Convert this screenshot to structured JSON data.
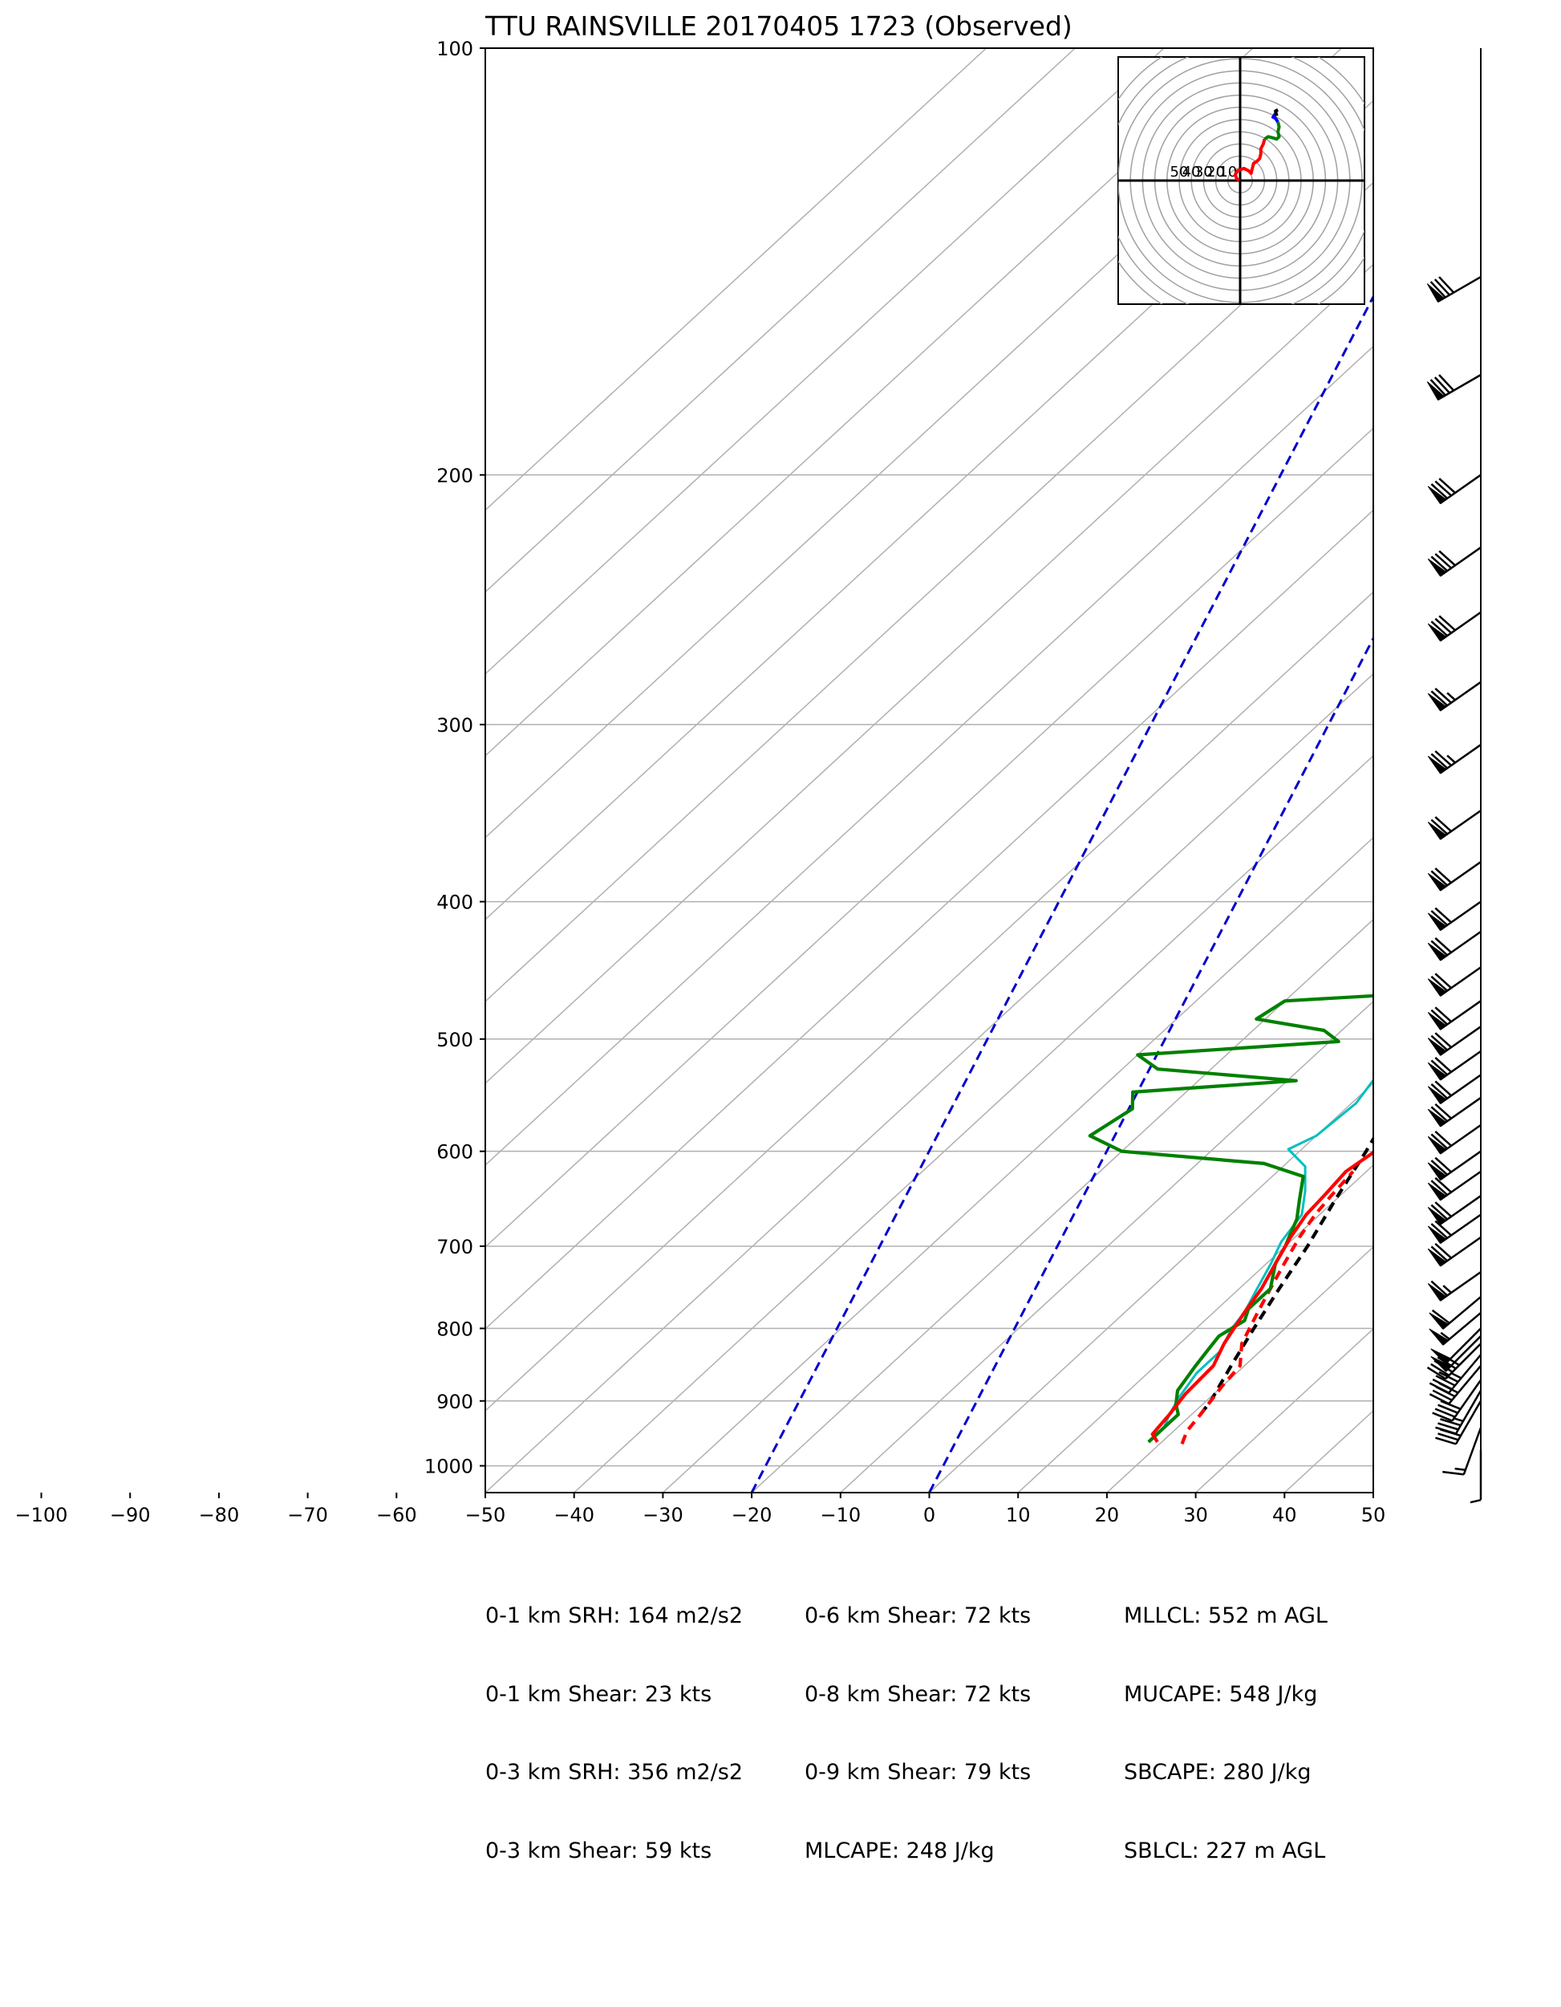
{
  "chart_data": {
    "type": "line",
    "diagram": "skew-T log-P",
    "title": "TTU RAINSVILLE 20170405 1723   (Observed)",
    "xlabel": "",
    "ylabel": "",
    "x_ticks": [
      "−100",
      "−90",
      "−80",
      "−70",
      "−60",
      "−50",
      "−40",
      "−30",
      "−20",
      "−10",
      "0",
      "10",
      "20",
      "30",
      "40",
      "50"
    ],
    "x_tick_values": [
      -100,
      -90,
      -80,
      -70,
      -60,
      -50,
      -40,
      -30,
      -20,
      -10,
      0,
      10,
      20,
      30,
      40,
      50
    ],
    "y_ticks": [
      "100",
      "200",
      "300",
      "400",
      "500",
      "600",
      "700",
      "800",
      "900",
      "1000"
    ],
    "y_tick_values": [
      100,
      200,
      300,
      400,
      500,
      600,
      700,
      800,
      900,
      1000
    ],
    "xlim": [
      -50,
      50
    ],
    "ylim": [
      1050,
      100
    ],
    "y_scale": "log",
    "grid": true,
    "colors": {
      "temperature": "#ff0000",
      "dewpoint": "#008000",
      "wetbulb": "#00bfbf",
      "parcel": "#000000",
      "mixing_ratio": "#0000cc",
      "grid": "#b0b0b0"
    },
    "series": [
      {
        "name": "",
        "role": "temperature",
        "color": "#ff0000",
        "style": "solid",
        "points": [
          [
            19.5,
            962
          ],
          [
            18.0,
            950
          ],
          [
            17.5,
            920
          ],
          [
            16.8,
            890
          ],
          [
            16.5,
            850
          ],
          [
            15.0,
            820
          ],
          [
            13.5,
            780
          ],
          [
            12.5,
            750
          ],
          [
            11.0,
            720
          ],
          [
            9.5,
            690
          ],
          [
            8.5,
            665
          ],
          [
            8.2,
            645
          ],
          [
            7.7,
            620
          ],
          [
            8.5,
            600
          ],
          [
            9.5,
            580
          ],
          [
            9.0,
            555
          ],
          [
            7.0,
            530
          ],
          [
            5.5,
            500
          ],
          [
            4.5,
            480
          ],
          [
            3.0,
            460
          ],
          [
            0.0,
            430
          ],
          [
            -3.5,
            400
          ],
          [
            -4.5,
            380
          ],
          [
            -6.5,
            350
          ],
          [
            -8.0,
            330
          ],
          [
            -10.5,
            300
          ],
          [
            -11.0,
            285
          ],
          [
            -13.0,
            265
          ],
          [
            -14.0,
            255
          ],
          [
            -18.0,
            235
          ],
          [
            -21.0,
            215
          ],
          [
            -24.0,
            200
          ],
          [
            -27.5,
            190
          ],
          [
            -32.0,
            183
          ],
          [
            -34.0,
            178
          ],
          [
            -34.5,
            172
          ],
          [
            -37.5,
            165
          ],
          [
            -39.0,
            160
          ],
          [
            -40.0,
            155
          ],
          [
            -42.0,
            147
          ],
          [
            -45.5,
            143
          ]
        ]
      },
      {
        "name": "",
        "role": "temperature-virtual",
        "color": "#ff0000",
        "style": "dashed",
        "points": [
          [
            22.5,
            965
          ],
          [
            21.5,
            945
          ],
          [
            21.0,
            920
          ],
          [
            20.0,
            880
          ],
          [
            19.5,
            850
          ],
          [
            17.0,
            820
          ],
          [
            15.0,
            780
          ],
          [
            13.5,
            750
          ],
          [
            12.0,
            720
          ],
          [
            10.5,
            690
          ],
          [
            9.5,
            665
          ],
          [
            9.0,
            645
          ],
          [
            8.5,
            620
          ]
        ]
      },
      {
        "name": "",
        "role": "dewpoint",
        "color": "#008000",
        "style": "solid",
        "points": [
          [
            18.5,
            962
          ],
          [
            18.5,
            940
          ],
          [
            18.5,
            920
          ],
          [
            17.0,
            905
          ],
          [
            15.5,
            885
          ],
          [
            14.5,
            850
          ],
          [
            14.0,
            830
          ],
          [
            13.5,
            810
          ],
          [
            14.5,
            790
          ],
          [
            13.5,
            775
          ],
          [
            13.5,
            750
          ],
          [
            11.0,
            720
          ],
          [
            10.0,
            700
          ],
          [
            9.0,
            685
          ],
          [
            8.0,
            670
          ],
          [
            6.0,
            650
          ],
          [
            3.5,
            625
          ],
          [
            -2.5,
            612
          ],
          [
            -20.0,
            600
          ],
          [
            -25.5,
            585
          ],
          [
            -24.0,
            560
          ],
          [
            -26.0,
            545
          ],
          [
            -9.0,
            535
          ],
          [
            -26.0,
            525
          ],
          [
            -30.0,
            513
          ],
          [
            -9.0,
            502
          ],
          [
            -12.0,
            493
          ],
          [
            -21.0,
            484
          ],
          [
            -20.0,
            470
          ],
          [
            -8.0,
            465
          ],
          [
            -3.5,
            440
          ],
          [
            -3.5,
            420
          ],
          [
            -8.0,
            390
          ],
          [
            -10.5,
            360
          ],
          [
            -16.0,
            320
          ],
          [
            -16.5,
            305
          ],
          [
            -14.5,
            295
          ],
          [
            -30.0,
            278
          ],
          [
            -34.0,
            268
          ],
          [
            -38.0,
            255
          ],
          [
            -34.0,
            245
          ],
          [
            -38.0,
            240
          ],
          [
            -42.0,
            238
          ],
          [
            -42.5,
            228
          ],
          [
            -42.5,
            215
          ],
          [
            -44.0,
            205
          ],
          [
            -47.5,
            195
          ],
          [
            -50.0,
            185
          ],
          [
            -52.0,
            175
          ],
          [
            -56.0,
            165
          ],
          [
            -59.0,
            155
          ],
          [
            -62.0,
            143
          ]
        ]
      },
      {
        "name": "",
        "role": "wetbulb",
        "color": "#00bfbf",
        "style": "solid",
        "points": [
          [
            18.5,
            962
          ],
          [
            18.5,
            940
          ],
          [
            17.5,
            920
          ],
          [
            16.5,
            895
          ],
          [
            15.5,
            860
          ],
          [
            15.5,
            830
          ],
          [
            14.0,
            800
          ],
          [
            13.5,
            780
          ],
          [
            12.0,
            750
          ],
          [
            10.5,
            720
          ],
          [
            9.0,
            695
          ],
          [
            8.0,
            665
          ],
          [
            5.5,
            640
          ],
          [
            2.5,
            615
          ],
          [
            -1.5,
            598
          ],
          [
            0.0,
            585
          ],
          [
            0.5,
            555
          ],
          [
            -1.0,
            520
          ],
          [
            -4.0,
            480
          ],
          [
            -5.0,
            460
          ],
          [
            -6.0,
            430
          ],
          [
            -7.5,
            400
          ],
          [
            -9.5,
            360
          ],
          [
            -11.5,
            330
          ],
          [
            -13.0,
            300
          ],
          [
            -14.5,
            280
          ],
          [
            -18.0,
            250
          ],
          [
            -22.0,
            225
          ],
          [
            -25.5,
            205
          ],
          [
            -28.5,
            193
          ],
          [
            -32.5,
            183
          ],
          [
            -35.0,
            175
          ],
          [
            -38.0,
            165
          ],
          [
            -41.0,
            155
          ],
          [
            -43.5,
            148
          ],
          [
            -45.5,
            143
          ]
        ]
      },
      {
        "name": "",
        "role": "parcel",
        "color": "#000000",
        "style": "dashed",
        "points": [
          [
            21.0,
            920
          ],
          [
            20.5,
            900
          ],
          [
            18.5,
            850
          ],
          [
            16.5,
            800
          ],
          [
            14.5,
            750
          ],
          [
            12.5,
            700
          ],
          [
            10.0,
            650
          ],
          [
            7.5,
            600
          ],
          [
            4.5,
            550
          ],
          [
            1.5,
            500
          ],
          [
            -2.0,
            450
          ],
          [
            -6.0,
            400
          ],
          [
            -11.0,
            350
          ],
          [
            -17.5,
            300
          ],
          [
            -25.5,
            250
          ],
          [
            -36.0,
            200
          ],
          [
            -43.5,
            175
          ],
          [
            -51.5,
            155
          ],
          [
            -57.5,
            143
          ]
        ]
      }
    ],
    "mixing_ratio_lines": [
      {
        "x_at_bottom": -20,
        "color": "#0000cc",
        "style": "dashed"
      },
      {
        "x_at_bottom": 0,
        "color": "#0000cc",
        "style": "dashed"
      }
    ],
    "hodograph": {
      "ring_labels": [
        "50",
        "40",
        "30",
        "20",
        "10"
      ],
      "ring_step_kts": 10,
      "segments": [
        {
          "color": "#ff0000",
          "points": [
            [
              -1,
              0
            ],
            [
              -3,
              2
            ],
            [
              -4,
              5
            ],
            [
              -2,
              8
            ],
            [
              3,
              10
            ],
            [
              7,
              8
            ],
            [
              9,
              6
            ],
            [
              10,
              10
            ],
            [
              11,
              14
            ],
            [
              14,
              16
            ],
            [
              16,
              18
            ],
            [
              17,
              22
            ],
            [
              17,
              26
            ],
            [
              19,
              30
            ],
            [
              20,
              34
            ]
          ]
        },
        {
          "color": "#008000",
          "points": [
            [
              20,
              34
            ],
            [
              23,
              36
            ],
            [
              27,
              35
            ],
            [
              30,
              34
            ],
            [
              32,
              36
            ],
            [
              31,
              40
            ],
            [
              32,
              44
            ],
            [
              31,
              48
            ]
          ]
        },
        {
          "color": "#0000ff",
          "points": [
            [
              31,
              48
            ],
            [
              29,
              51
            ],
            [
              27,
              52
            ],
            [
              29,
              55
            ],
            [
              30,
              53
            ]
          ]
        },
        {
          "color": "#000000",
          "points": [
            [
              30,
              53
            ],
            [
              29,
              57
            ],
            [
              31,
              58
            ]
          ]
        }
      ]
    },
    "wind_barbs": {
      "pressures": [
        145,
        170,
        200,
        225,
        250,
        280,
        310,
        345,
        375,
        400,
        420,
        445,
        470,
        490,
        510,
        530,
        550,
        575,
        600,
        620,
        645,
        665,
        690,
        730,
        760,
        780,
        800,
        810,
        820,
        835,
        850,
        870,
        885,
        900,
        940,
        975
      ],
      "speeds_kts": [
        80,
        80,
        80,
        80,
        80,
        75,
        75,
        70,
        70,
        70,
        70,
        70,
        70,
        70,
        70,
        70,
        70,
        70,
        70,
        70,
        70,
        70,
        70,
        65,
        60,
        55,
        50,
        50,
        45,
        45,
        40,
        40,
        35,
        30,
        15,
        5
      ],
      "directions_deg": [
        240,
        240,
        235,
        235,
        235,
        235,
        235,
        235,
        235,
        235,
        235,
        235,
        235,
        235,
        235,
        235,
        235,
        235,
        235,
        235,
        235,
        235,
        235,
        235,
        230,
        230,
        225,
        225,
        225,
        220,
        220,
        215,
        210,
        210,
        200,
        180
      ]
    }
  },
  "params": {
    "col1": [
      "0-1 km SRH: 164 m2/s2",
      "0-1 km Shear: 23 kts",
      "0-3 km SRH: 356 m2/s2",
      "0-3 km Shear: 59 kts"
    ],
    "col2": [
      "0-6 km Shear: 72 kts",
      "0-8 km Shear: 72 kts",
      "0-9 km Shear: 79 kts",
      "MLCAPE: 248 J/kg"
    ],
    "col3": [
      "MLLCL: 552 m AGL",
      "MUCAPE: 548 J/kg",
      "SBCAPE: 280 J/kg",
      "SBLCL: 227 m AGL"
    ]
  }
}
